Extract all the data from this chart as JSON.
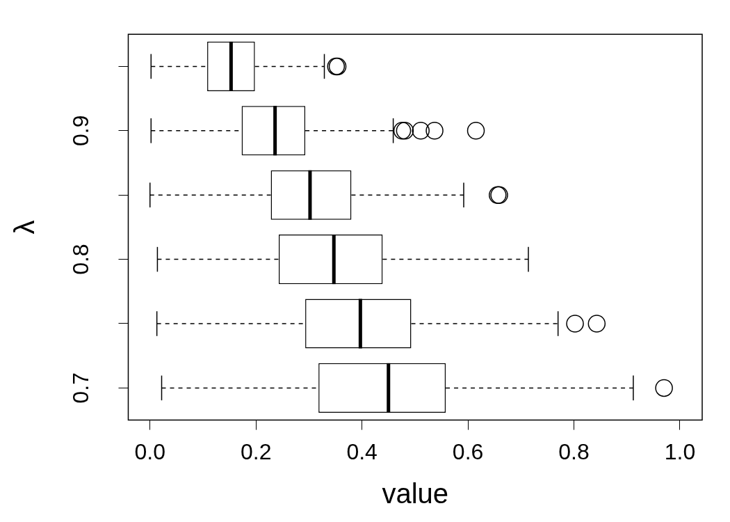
{
  "chart_data": {
    "type": "box",
    "orientation": "horizontal",
    "xlabel": "value",
    "ylabel": "λ",
    "categories": [
      null,
      "0.9",
      null,
      "0.8",
      null,
      "0.7"
    ],
    "boxes": [
      {
        "low": 0.002,
        "q1": 0.108,
        "median": 0.153,
        "q3": 0.198,
        "high": 0.329,
        "outliers": [
          0.351,
          0.354
        ]
      },
      {
        "low": 0.002,
        "q1": 0.173,
        "median": 0.236,
        "q3": 0.293,
        "high": 0.459,
        "outliers": [
          0.476,
          0.481,
          0.511,
          0.537,
          0.615
        ]
      },
      {
        "low": 0.0,
        "q1": 0.228,
        "median": 0.302,
        "q3": 0.38,
        "high": 0.592,
        "outliers": [
          0.656,
          0.659
        ]
      },
      {
        "low": 0.014,
        "q1": 0.243,
        "median": 0.347,
        "q3": 0.439,
        "high": 0.714
      },
      {
        "low": 0.013,
        "q1": 0.293,
        "median": 0.397,
        "q3": 0.493,
        "high": 0.77,
        "outliers": [
          0.802,
          0.843
        ]
      },
      {
        "low": 0.022,
        "q1": 0.318,
        "median": 0.45,
        "q3": 0.558,
        "high": 0.912,
        "outliers": [
          0.97
        ]
      }
    ],
    "xlim": [
      -0.041,
      1.042
    ],
    "xticks": [
      {
        "value": 0,
        "label": "0.0"
      },
      0.2,
      0.4,
      0.6,
      0.8,
      {
        "value": 1,
        "label": "1.0"
      }
    ],
    "grid": false,
    "legend": false,
    "marker": "circle",
    "line_style": "dashed",
    "color": "#000000"
  }
}
